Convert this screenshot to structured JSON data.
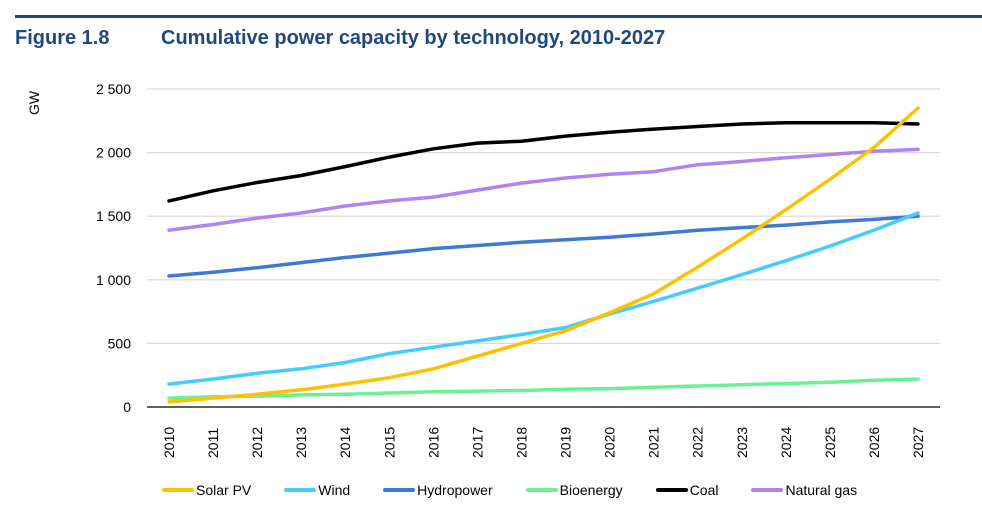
{
  "figure": {
    "number": "Figure 1.8",
    "title": "Cumulative power capacity by technology, 2010-2027",
    "accent_color": "#1f497d"
  },
  "chart_data": {
    "type": "line",
    "title": "Cumulative power capacity by technology, 2010-2027",
    "xlabel": "",
    "ylabel": "GW",
    "ylim": [
      0,
      2500
    ],
    "yticks": [
      0,
      500,
      1000,
      1500,
      2000,
      2500
    ],
    "ytick_labels": [
      "0",
      "500",
      "1 000",
      "1 500",
      "2 000",
      "2 500"
    ],
    "grid": true,
    "legend_position": "bottom",
    "x": [
      "2010",
      "2011",
      "2012",
      "2013",
      "2014",
      "2015",
      "2016",
      "2017",
      "2018",
      "2019",
      "2020",
      "2021",
      "2022",
      "2023",
      "2024",
      "2025",
      "2026",
      "2027"
    ],
    "series": [
      {
        "name": "Solar PV",
        "color": "#ffc000",
        "values": [
          40,
          70,
          100,
          135,
          180,
          230,
          300,
          400,
          500,
          600,
          740,
          890,
          1100,
          1320,
          1550,
          1790,
          2040,
          2350
        ]
      },
      {
        "name": "Wind",
        "color": "#45ccff",
        "values": [
          180,
          220,
          265,
          300,
          350,
          420,
          470,
          520,
          570,
          625,
          730,
          830,
          935,
          1040,
          1150,
          1265,
          1390,
          1525
        ]
      },
      {
        "name": "Hydropower",
        "color": "#3e7ad3",
        "values": [
          1030,
          1060,
          1095,
          1135,
          1175,
          1210,
          1245,
          1270,
          1295,
          1315,
          1335,
          1360,
          1390,
          1410,
          1430,
          1455,
          1475,
          1500
        ]
      },
      {
        "name": "Bioenergy",
        "color": "#6bf193",
        "values": [
          70,
          80,
          85,
          95,
          100,
          110,
          120,
          125,
          130,
          140,
          145,
          155,
          165,
          175,
          185,
          195,
          210,
          220
        ]
      },
      {
        "name": "Coal",
        "color": "#000000",
        "values": [
          1620,
          1700,
          1765,
          1820,
          1890,
          1965,
          2030,
          2075,
          2090,
          2130,
          2160,
          2185,
          2205,
          2225,
          2235,
          2235,
          2235,
          2225
        ]
      },
      {
        "name": "Natural gas",
        "color": "#b083f0",
        "values": [
          1390,
          1435,
          1485,
          1525,
          1580,
          1620,
          1650,
          1705,
          1760,
          1800,
          1830,
          1850,
          1905,
          1930,
          1960,
          1985,
          2010,
          2025
        ]
      }
    ]
  }
}
